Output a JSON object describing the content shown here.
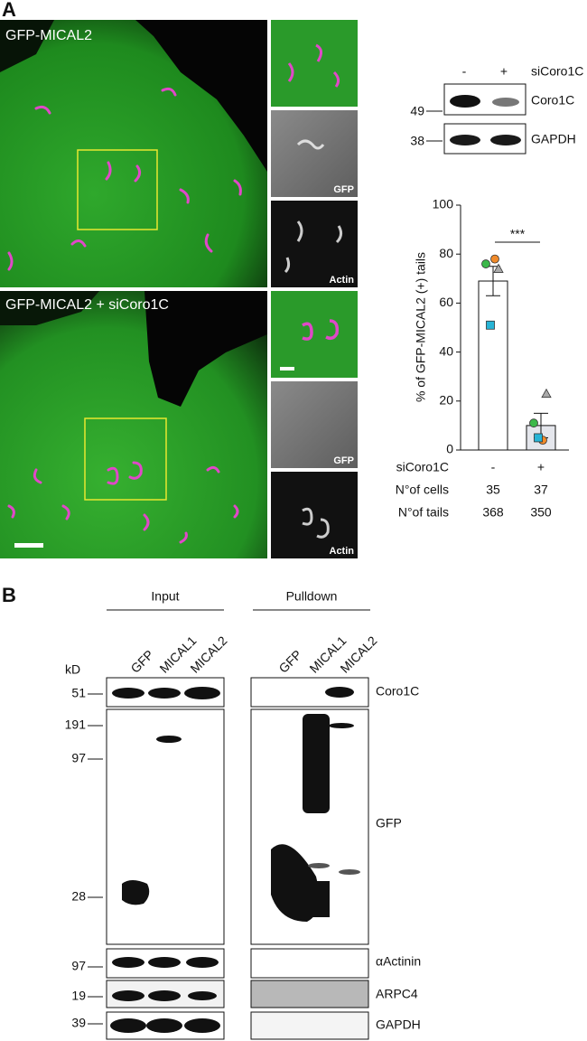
{
  "panel_a": {
    "label": "A",
    "image_top_label": "GFP-MICAL2",
    "image_bottom_label": "GFP-MICAL2 + siCoro1C",
    "inset_labels": [
      "GFP",
      "Actin",
      "GFP",
      "Actin"
    ]
  },
  "blot_a": {
    "lanes": [
      "-",
      "+"
    ],
    "condition": "siCoro1C",
    "markers": [
      "49",
      "38"
    ],
    "proteins": [
      "Coro1C",
      "GAPDH"
    ]
  },
  "chart_data": {
    "type": "bar",
    "ylabel": "% of GFP-MICAL2 (+) tails",
    "condition": "siCoro1C",
    "categories": [
      "-",
      "+"
    ],
    "values": [
      69,
      10
    ],
    "errors": [
      6,
      5
    ],
    "colors": [
      "#ffffff",
      "#e4e6ec"
    ],
    "points": [
      [
        76,
        78,
        74,
        51
      ],
      [
        11,
        4,
        23,
        5
      ]
    ],
    "point_markers": [
      {
        "shape": "circle",
        "color": "#3cb84a"
      },
      {
        "shape": "circle",
        "color": "#f08a2a"
      },
      {
        "shape": "triangle",
        "color": "#a9a9a9"
      },
      {
        "shape": "square",
        "color": "#27b4d6"
      }
    ],
    "significance": "***",
    "ylim": [
      0,
      100
    ],
    "yticks": [
      0,
      20,
      40,
      60,
      80,
      100
    ],
    "table": [
      {
        "label": "N°of cells",
        "values": [
          35,
          37
        ]
      },
      {
        "label": "N°of tails",
        "values": [
          368,
          350
        ]
      }
    ]
  },
  "panel_b": {
    "label": "B",
    "groups": [
      "Input",
      "Pulldown"
    ],
    "lanes": [
      "GFP",
      "MICAL1",
      "MICAL2"
    ],
    "unit": "kD",
    "markers": [
      "51",
      "191",
      "97",
      "28",
      "97",
      "19",
      "39"
    ],
    "proteins": [
      "Coro1C",
      "GFP",
      "αActinin",
      "ARPC4",
      "GAPDH"
    ]
  }
}
